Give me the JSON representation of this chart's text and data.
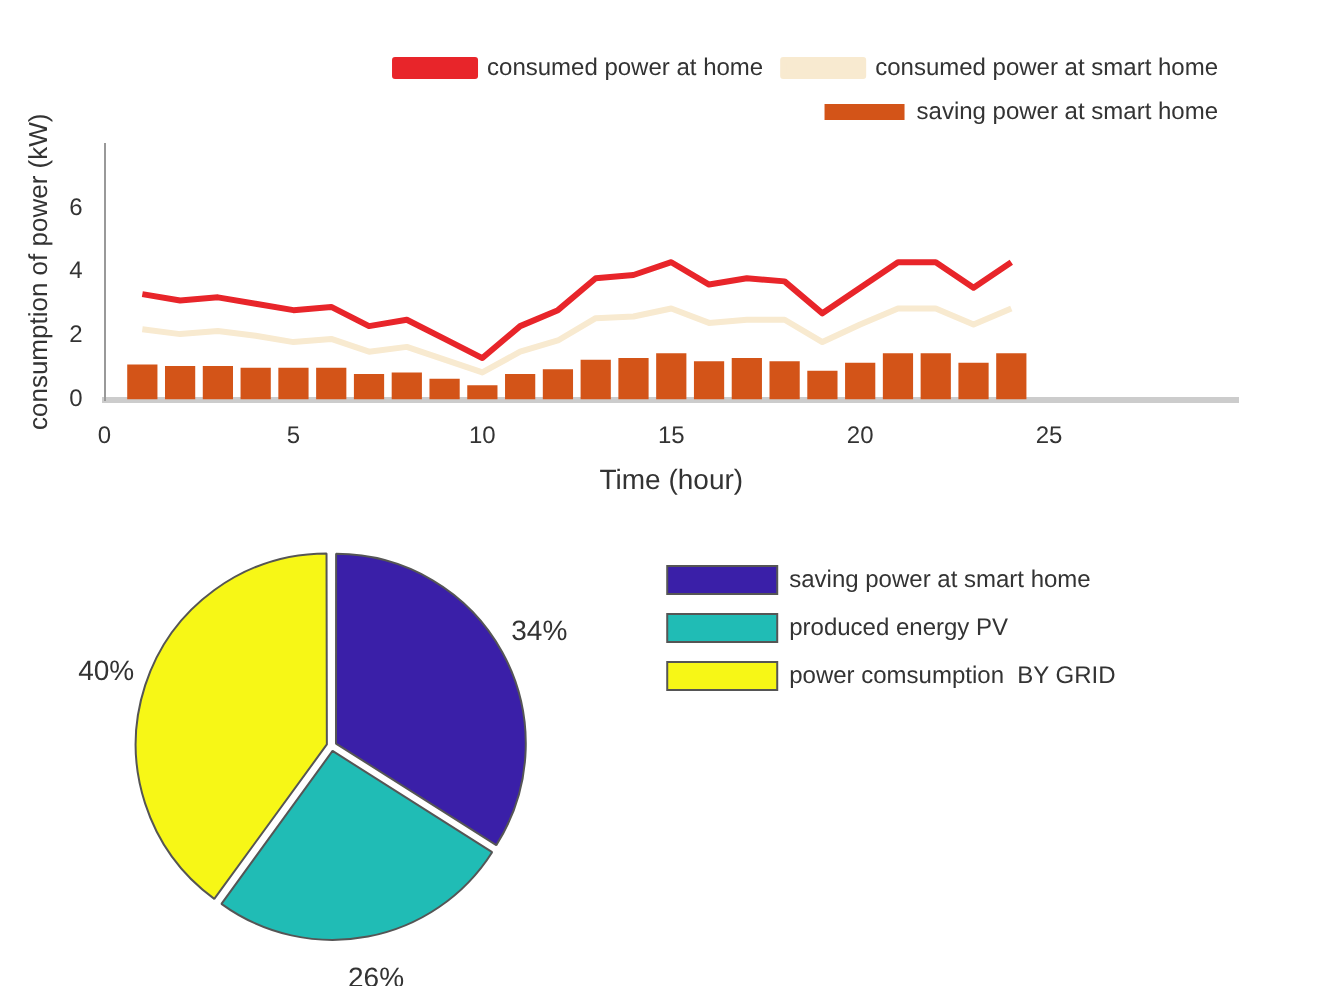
{
  "chart_data": [
    {
      "type": "bar",
      "xlabel": "Time (hour)",
      "ylabel": "consumption of power (kW)",
      "x": [
        1,
        2,
        3,
        4,
        5,
        6,
        7,
        8,
        9,
        10,
        11,
        12,
        13,
        14,
        15,
        16,
        17,
        18,
        19,
        20,
        21,
        22,
        23,
        24
      ],
      "xlim": [
        0,
        30
      ],
      "xticks": [
        0,
        5,
        10,
        15,
        20,
        25
      ],
      "ylim": [
        0,
        8
      ],
      "yticks": [
        0,
        2,
        4,
        6
      ],
      "legend": "top right",
      "grid": false,
      "series": [
        {
          "name": "consumed power at home",
          "type": "line",
          "color": "#e8252a",
          "values": [
            3.3,
            3.1,
            3.2,
            3.0,
            2.8,
            2.9,
            2.3,
            2.5,
            1.9,
            1.3,
            2.3,
            2.8,
            3.8,
            3.9,
            4.3,
            3.6,
            3.8,
            3.7,
            2.7,
            3.5,
            4.3,
            4.3,
            3.5,
            4.3
          ]
        },
        {
          "name": "saving power at smart home",
          "type": "bar",
          "color": "#d35418",
          "values": [
            1.1,
            1.05,
            1.05,
            1.0,
            1.0,
            1.0,
            0.8,
            0.85,
            0.65,
            0.45,
            0.8,
            0.95,
            1.25,
            1.3,
            1.45,
            1.2,
            1.3,
            1.2,
            0.9,
            1.15,
            1.45,
            1.45,
            1.15,
            1.45
          ]
        },
        {
          "name": "consumed power at smart home",
          "type": "line",
          "color": "#f8ead0",
          "values": [
            2.2,
            2.05,
            2.15,
            2.0,
            1.8,
            1.9,
            1.5,
            1.65,
            1.25,
            0.85,
            1.5,
            1.85,
            2.55,
            2.6,
            2.85,
            2.4,
            2.5,
            2.5,
            1.8,
            2.35,
            2.85,
            2.85,
            2.35,
            2.85
          ]
        }
      ]
    },
    {
      "type": "pie",
      "categories": [
        "saving power at smart home",
        "produced energy PV",
        "power comsumption  BY GRID"
      ],
      "values": [
        34,
        26,
        40
      ],
      "colors": [
        "#3a1fa8",
        "#20bcb5",
        "#f7f716"
      ],
      "value_labels": [
        "34%",
        "26%",
        "40%"
      ],
      "legend": "top right"
    }
  ]
}
